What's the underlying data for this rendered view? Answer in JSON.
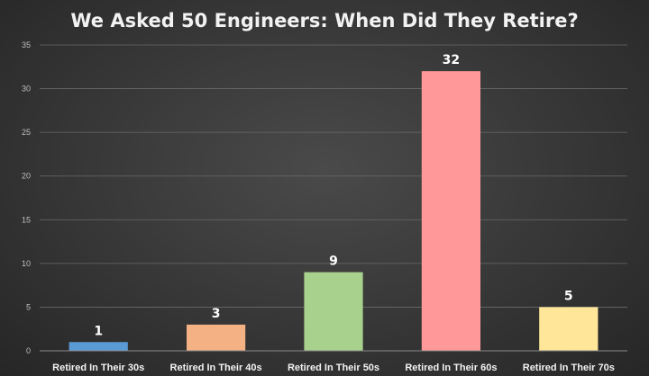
{
  "chart_data": {
    "type": "bar",
    "title": "We Asked 50 Engineers: When Did They Retire?",
    "categories": [
      "Retired In Their 30s",
      "Retired In Their 40s",
      "Retired In Their 50s",
      "Retired In Their 60s",
      "Retired In Their 70s"
    ],
    "values": [
      1,
      3,
      9,
      32,
      5
    ],
    "data_labels": [
      "1",
      "3",
      "9",
      "32",
      "5"
    ],
    "colors": [
      "#5b9bd5",
      "#f4b183",
      "#a9d18e",
      "#ff9999",
      "#ffe699"
    ],
    "ylim": [
      0,
      35
    ],
    "yticks": [
      0,
      5,
      10,
      15,
      20,
      25,
      30,
      35
    ],
    "ytick_labels": [
      "0",
      "5",
      "10",
      "15",
      "20",
      "25",
      "30",
      "35"
    ],
    "grid": true,
    "legend": "none",
    "xlabel": "",
    "ylabel": ""
  }
}
